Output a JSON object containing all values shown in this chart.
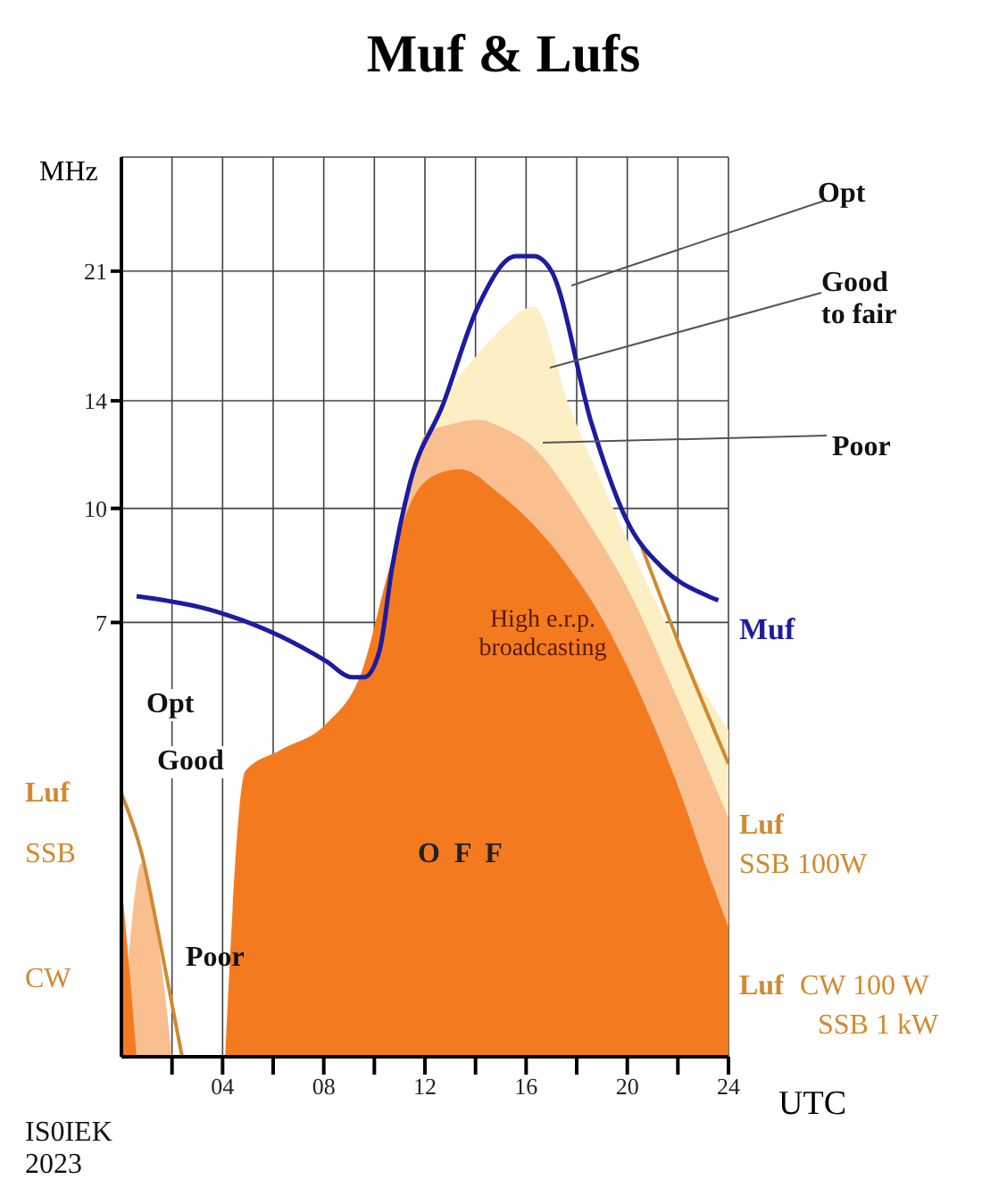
{
  "chart_data": {
    "type": "area",
    "title": "Muf & Lufs",
    "xlabel": "UTC",
    "ylabel": "MHz",
    "log": "y",
    "grid": true,
    "marker": "none",
    "line_style": "solid",
    "xlim": [
      0,
      24
    ],
    "xticks": [
      {
        "value": 2,
        "label": null
      },
      {
        "value": 4,
        "label": "04"
      },
      {
        "value": 6,
        "label": null
      },
      {
        "value": 8,
        "label": "08"
      },
      {
        "value": 10,
        "label": null
      },
      12,
      {
        "value": 14,
        "label": null
      },
      16,
      {
        "value": 18,
        "label": null
      },
      20,
      {
        "value": 22,
        "label": null
      },
      24
    ],
    "ylim": [
      1.8,
      30
    ],
    "yticks": [
      7,
      10,
      14,
      21
    ],
    "series": [
      {
        "color": "#fcefc4",
        "x": [
          10.6,
          12,
          13,
          14.1,
          15,
          16.3,
          17.7,
          19.5,
          22,
          24
        ],
        "values": [
          8.3,
          12.5,
          14.5,
          16.2,
          17.5,
          18.8,
          13.8,
          9.9,
          6.5,
          5
        ]
      },
      {
        "color": "#f9bf8f",
        "x": [
          10.6,
          11.4,
          12,
          13,
          14.1,
          15,
          16.3,
          17.7,
          18.6,
          20,
          22,
          24
        ],
        "values": [
          8.3,
          10.5,
          12.6,
          13,
          13.2,
          12.9,
          12.1,
          10.5,
          9.4,
          7.8,
          5.5,
          3.8
        ]
      },
      {
        "color": "#f47a20",
        "x": [
          4.1,
          4.9,
          6.3,
          8.1,
          9.5,
          10.6,
          11.4,
          12.4,
          13.4,
          14.9,
          16.3,
          17.7,
          19.1,
          20.6,
          22,
          23.2,
          24
        ],
        "values": [
          1.8,
          4.4,
          4.7,
          5.1,
          6,
          8.3,
          10.1,
          11.1,
          11.3,
          10.5,
          9.5,
          8.3,
          7,
          5.5,
          4.2,
          3.2,
          2.7
        ]
      },
      {
        "color": "#f9bf8f",
        "x": [
          0.3,
          0.8,
          1.3,
          2
        ],
        "values": [
          2.5,
          3.3,
          2.8,
          1.8
        ]
      },
      {
        "color": "#f47a20",
        "x": [
          0,
          0.3,
          0.6
        ],
        "values": [
          3.1,
          2.4,
          1.8
        ]
      },
      {
        "type": "line",
        "color": "#d08a30",
        "x": [
          0,
          0.8,
          1.6,
          2.4
        ],
        "values": [
          4.1,
          3.4,
          2.5,
          1.8
        ]
      },
      {
        "type": "line",
        "color": "#d08a30",
        "x": [
          20.5,
          22,
          24
        ],
        "values": [
          9,
          6.6,
          4.5
        ]
      },
      {
        "type": "line",
        "name": "Muf",
        "color": "#1c1ca0",
        "x": [
          0.6,
          3.4,
          6.3,
          8.1,
          9.1,
          9.6,
          10.2,
          10.7,
          11.4,
          12.7,
          14.1,
          15.6,
          16.3,
          17,
          18.6,
          20,
          21.4,
          23.2,
          23.6
        ],
        "values": [
          7.6,
          7.3,
          6.7,
          6.2,
          5.9,
          5.9,
          6.4,
          8.3,
          10.8,
          13.8,
          18.8,
          22,
          22,
          21,
          13,
          9.6,
          8.3,
          7.6,
          7.5
        ]
      }
    ],
    "annotations": [
      "Opt",
      "Good to fair",
      "Poor",
      "High e.r.p. broadcasting",
      "O F F",
      "Opt",
      "Good",
      "Luf",
      "SSB",
      "CW",
      "Poor",
      "Luf",
      "SSB 100W",
      "Luf",
      "CW 100 W",
      "SSB 1 kW",
      "IS0IEK 2023"
    ]
  }
}
